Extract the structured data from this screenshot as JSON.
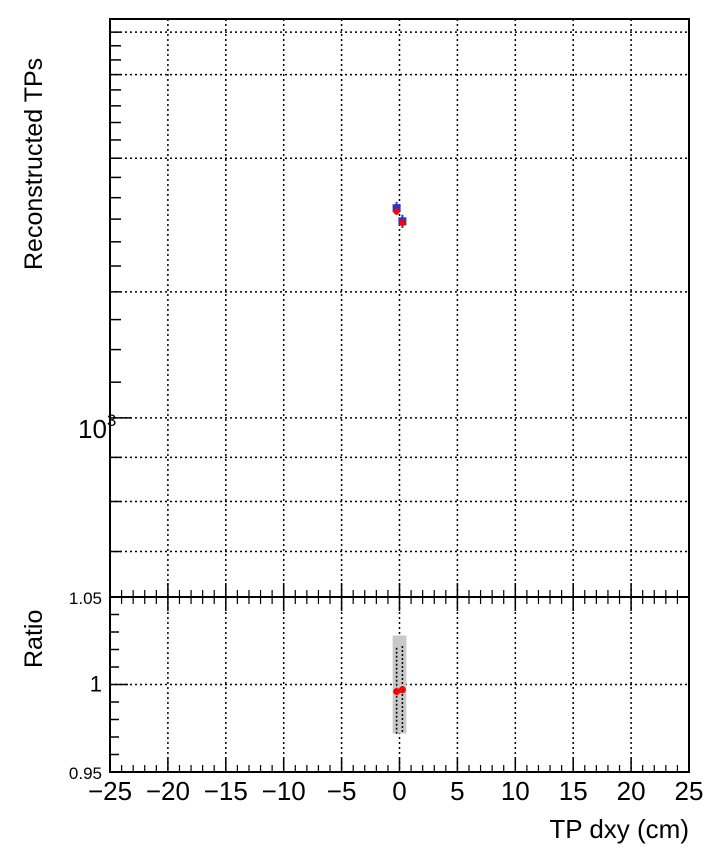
{
  "chart_data": [
    {
      "type": "scatter",
      "panel": "main",
      "ylabel": "Reconstructed TPs",
      "yscale": "log",
      "ylim": [
        620,
        2900
      ],
      "xlim": [
        -25,
        25
      ],
      "y_tick_label": {
        "base": "10",
        "exp": "3",
        "value": 1000
      },
      "grid": true,
      "series": [
        {
          "color": "#3333cc",
          "marker": "square",
          "points": [
            {
              "x": -0.25,
              "y": 1750,
              "err": 30
            },
            {
              "x": 0.25,
              "y": 1690,
              "err": 30
            }
          ]
        },
        {
          "color": "#ff0000",
          "marker": "circle",
          "points": [
            {
              "x": -0.25,
              "y": 1735
            },
            {
              "x": 0.25,
              "y": 1683
            }
          ]
        }
      ]
    },
    {
      "type": "scatter",
      "panel": "ratio",
      "xlabel": "TP dxy (cm)",
      "ylabel": "Ratio",
      "xlim": [
        -25,
        25
      ],
      "ylim": [
        0.95,
        1.05
      ],
      "x_ticks": [
        "−25",
        "−20",
        "−15",
        "−10",
        "−5",
        "0",
        "5",
        "10",
        "15",
        "20",
        "25"
      ],
      "x_tick_values": [
        -25,
        -20,
        -15,
        -10,
        -5,
        0,
        5,
        10,
        15,
        20,
        25
      ],
      "y_ticks": [
        "0.95",
        "1",
        "1.05"
      ],
      "y_tick_values": [
        0.95,
        1.0,
        1.05
      ],
      "grid": true,
      "bands": [
        {
          "x": -0.25,
          "low": 0.972,
          "high": 1.028,
          "color": "#c8c8c8"
        },
        {
          "x": 0.25,
          "low": 0.972,
          "high": 1.028,
          "color": "#c8c8c8"
        }
      ],
      "points": [
        {
          "x": -0.25,
          "y": 0.996,
          "err": 0.025,
          "color": "#ff0000"
        },
        {
          "x": 0.25,
          "y": 0.997,
          "err": 0.025,
          "color": "#ff0000"
        }
      ]
    }
  ]
}
